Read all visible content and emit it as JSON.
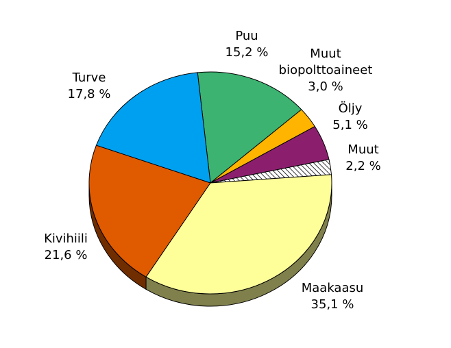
{
  "chart_data": {
    "type": "pie",
    "title": "",
    "three_d": true,
    "start_angle_deg": -96.1,
    "slices": [
      {
        "name": "Puu",
        "value": 15.2,
        "value_label": "15,2 %",
        "color": "#3cb371",
        "label_lines": [
          "Puu"
        ]
      },
      {
        "name": "Muut biopolttoaineet",
        "value": 3.0,
        "value_label": "3,0 %",
        "color": "#ffb400",
        "label_lines": [
          "Muut",
          "biopolttoaineet"
        ]
      },
      {
        "name": "Öljy",
        "value": 5.1,
        "value_label": "5,1 %",
        "color": "#8b1f6e",
        "label_lines": [
          "Öljy"
        ]
      },
      {
        "name": "Muut",
        "value": 2.2,
        "value_label": "2,2 %",
        "color": "#ffffff",
        "hatched": true,
        "label_lines": [
          "Muut"
        ]
      },
      {
        "name": "Maakaasu",
        "value": 35.1,
        "value_label": "35,1 %",
        "color": "#ffff99",
        "label_lines": [
          "Maakaasu"
        ]
      },
      {
        "name": "Kivihiili",
        "value": 21.6,
        "value_label": "21,6 %",
        "color": "#e05a00",
        "label_lines": [
          "Kivihiili"
        ]
      },
      {
        "name": "Turve",
        "value": 17.8,
        "value_label": "17,8 %",
        "color": "#00a0f0",
        "label_lines": [
          "Turve"
        ]
      }
    ]
  }
}
